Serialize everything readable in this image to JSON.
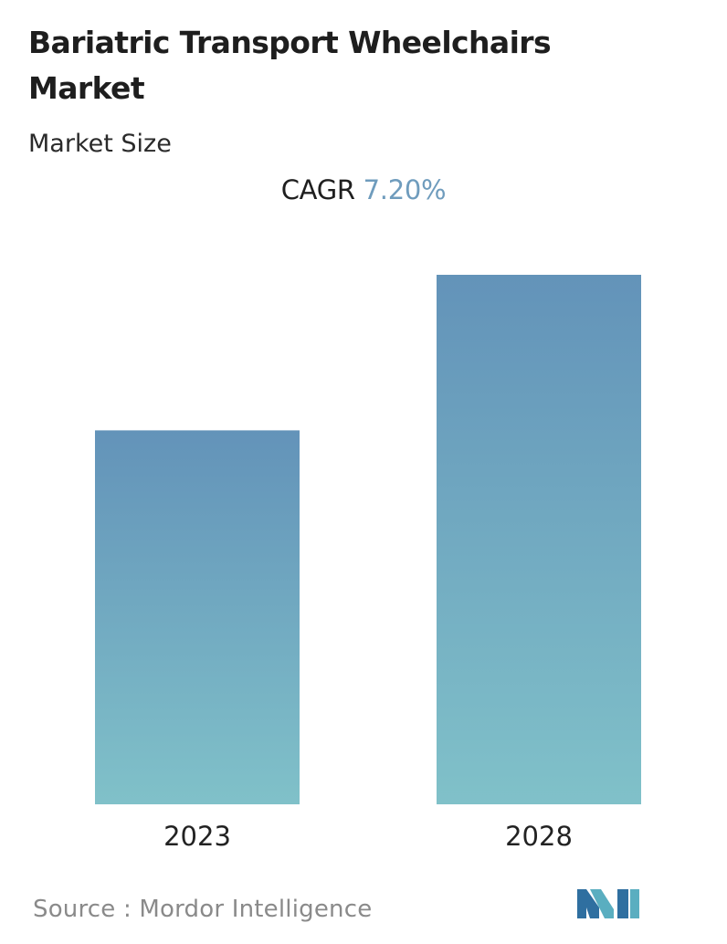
{
  "title": "Bariatric Transport Wheelchairs Market",
  "subtitle": "Market Size",
  "cagr": {
    "label": "CAGR",
    "value": "7.20%"
  },
  "source": {
    "text": "Source :  Mordor Intelligence"
  },
  "logo": {
    "name": "mordor-intelligence-logo",
    "colors": [
      "#2f6fa0",
      "#5aaec0"
    ]
  },
  "colors": {
    "bar_top": "#6393b9",
    "bar_bottom": "#80c1c9",
    "cagr_value": "#6f9cbd"
  },
  "chart_data": {
    "type": "bar",
    "categories": [
      "2023",
      "2028"
    ],
    "values": [
      1,
      1.416
    ],
    "ylim": [
      0,
      1.416
    ],
    "grid": false,
    "legend": "none"
  }
}
